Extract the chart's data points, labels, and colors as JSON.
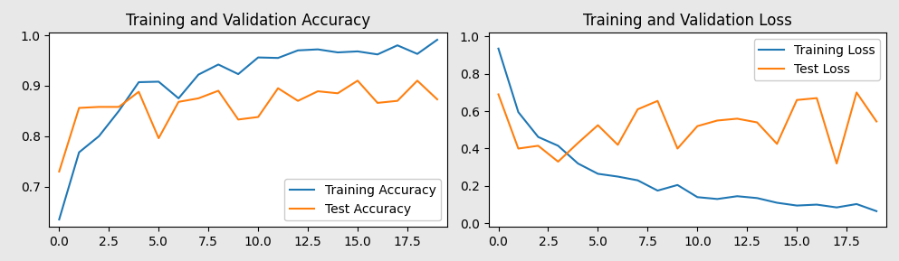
{
  "acc_title": "Training and Validation Accuracy",
  "loss_title": "Training and Validation Loss",
  "epochs": [
    0,
    1,
    2,
    3,
    4,
    5,
    6,
    7,
    8,
    9,
    10,
    11,
    12,
    13,
    14,
    15,
    16,
    17,
    18,
    19
  ],
  "train_acc": [
    0.635,
    0.768,
    0.8,
    0.85,
    0.907,
    0.908,
    0.875,
    0.922,
    0.942,
    0.923,
    0.956,
    0.955,
    0.97,
    0.972,
    0.966,
    0.968,
    0.962,
    0.98,
    0.963,
    0.991
  ],
  "test_acc": [
    0.73,
    0.856,
    0.858,
    0.858,
    0.888,
    0.796,
    0.868,
    0.875,
    0.89,
    0.833,
    0.838,
    0.895,
    0.87,
    0.889,
    0.885,
    0.91,
    0.866,
    0.87,
    0.91,
    0.873
  ],
  "train_loss": [
    0.935,
    0.595,
    0.462,
    0.415,
    0.32,
    0.265,
    0.25,
    0.23,
    0.175,
    0.205,
    0.14,
    0.13,
    0.145,
    0.135,
    0.11,
    0.095,
    0.1,
    0.085,
    0.103,
    0.065
  ],
  "test_loss": [
    0.69,
    0.4,
    0.415,
    0.33,
    0.43,
    0.525,
    0.42,
    0.61,
    0.655,
    0.4,
    0.52,
    0.55,
    0.56,
    0.54,
    0.425,
    0.66,
    0.67,
    0.32,
    0.7,
    0.545
  ],
  "blue_color": "#1f77b4",
  "orange_color": "#ff7f0e",
  "acc_legend_loc": "lower right",
  "loss_legend_loc": "upper right",
  "acc_ylim": [
    0.62,
    1.005
  ],
  "loss_ylim": [
    -0.02,
    1.02
  ],
  "fig_facecolor": "#e8e8e8",
  "axes_facecolor": "#ffffff",
  "figsize": [
    9.93,
    2.89
  ],
  "dpi": 100
}
